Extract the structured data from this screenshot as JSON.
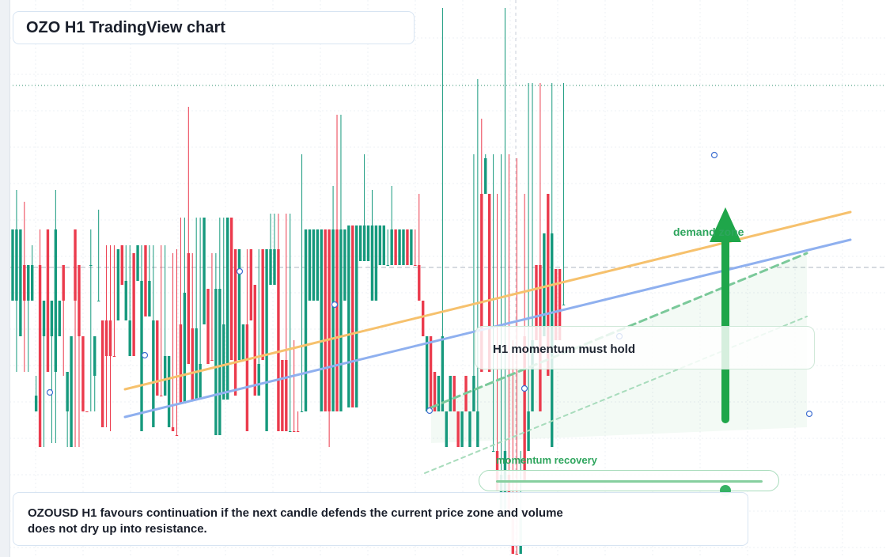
{
  "header": {
    "title": "OZO H1 TradingView chart"
  },
  "annotations": {
    "callout": "H1 momentum must hold",
    "demand_label": "demand zone",
    "momentum_label": "momentum recovery",
    "momentum_level": 0.86
  },
  "summary": {
    "line1": "OZOUSD H1 favours continuation if the next candle defends the current price zone and volume",
    "line2": "does not dry up into resistance."
  },
  "colors": {
    "bull": "#16997d",
    "bear": "#eb3b4d",
    "trend_upper": "#f6c16d",
    "trend_lower": "#8fb0ef",
    "accent": "#2ea55d"
  },
  "chart_data": {
    "type": "candlestick",
    "symbol": "OZOUSD",
    "timeframe": "H1",
    "ylim": [
      0,
      704
    ],
    "candles": [
      [
        290,
        290,
        380,
        380,
        1
      ],
      [
        290,
        240,
        470,
        380,
        1
      ],
      [
        290,
        290,
        425,
        425,
        1
      ],
      [
        335,
        255,
        470,
        380,
        0
      ],
      [
        335,
        335,
        470,
        380,
        1
      ],
      [
        335,
        310,
        380,
        380,
        1
      ],
      [
        500,
        475,
        520,
        520,
        1
      ],
      [
        335,
        290,
        565,
        565,
        0
      ],
      [
        380,
        380,
        565,
        425,
        1
      ],
      [
        290,
        290,
        470,
        470,
        0
      ],
      [
        380,
        380,
        560,
        425,
        1
      ],
      [
        290,
        240,
        560,
        470,
        1
      ],
      [
        380,
        380,
        425,
        425,
        1
      ],
      [
        335,
        335,
        475,
        380,
        0
      ],
      [
        470,
        470,
        565,
        520,
        1
      ],
      [
        425,
        425,
        565,
        565,
        1
      ],
      [
        290,
        290,
        565,
        380,
        0
      ],
      [
        335,
        335,
        565,
        425,
        0
      ],
      [
        425,
        425,
        520,
        520,
        0
      ],
      [
        520,
        520,
        520,
        520,
        0
      ],
      [
        335,
        290,
        520,
        335,
        1
      ],
      [
        425,
        425,
        520,
        475,
        1
      ],
      [
        380,
        265,
        380,
        380,
        1
      ],
      [
        405,
        405,
        540,
        540,
        0
      ],
      [
        405,
        310,
        540,
        450,
        0
      ],
      [
        405,
        310,
        545,
        450,
        0
      ],
      [
        450,
        310,
        450,
        450,
        0
      ],
      [
        315,
        315,
        405,
        405,
        1
      ],
      [
        310,
        310,
        360,
        360,
        0
      ],
      [
        355,
        310,
        405,
        405,
        1
      ],
      [
        405,
        310,
        450,
        450,
        1
      ],
      [
        320,
        320,
        450,
        450,
        0
      ],
      [
        310,
        310,
        355,
        355,
        1
      ],
      [
        355,
        310,
        545,
        545,
        1
      ],
      [
        310,
        310,
        400,
        400,
        0
      ],
      [
        355,
        310,
        400,
        400,
        1
      ],
      [
        405,
        310,
        540,
        540,
        1
      ],
      [
        405,
        405,
        500,
        500,
        0
      ],
      [
        500,
        310,
        500,
        500,
        0
      ],
      [
        450,
        310,
        500,
        500,
        1
      ],
      [
        450,
        450,
        540,
        540,
        1
      ],
      [
        540,
        320,
        545,
        545,
        0
      ],
      [
        550,
        315,
        550,
        550,
        0
      ],
      [
        410,
        275,
        510,
        510,
        0
      ],
      [
        370,
        275,
        510,
        510,
        1
      ],
      [
        320,
        135,
        460,
        460,
        0
      ],
      [
        415,
        320,
        505,
        505,
        0
      ],
      [
        415,
        275,
        505,
        505,
        1
      ],
      [
        460,
        275,
        505,
        505,
        1
      ],
      [
        275,
        275,
        410,
        410,
        1
      ],
      [
        365,
        365,
        460,
        460,
        0
      ],
      [
        455,
        320,
        455,
        455,
        0
      ],
      [
        365,
        320,
        550,
        550,
        1
      ],
      [
        365,
        275,
        550,
        550,
        1
      ],
      [
        410,
        275,
        505,
        505,
        1
      ],
      [
        275,
        275,
        505,
        505,
        1
      ],
      [
        275,
        275,
        455,
        455,
        0
      ],
      [
        315,
        315,
        500,
        500,
        0
      ],
      [
        315,
        315,
        455,
        455,
        1
      ],
      [
        410,
        410,
        455,
        455,
        1
      ],
      [
        410,
        315,
        545,
        545,
        0
      ],
      [
        315,
        315,
        405,
        405,
        0
      ],
      [
        360,
        360,
        500,
        500,
        0
      ],
      [
        460,
        315,
        500,
        500,
        1
      ],
      [
        315,
        315,
        455,
        455,
        0
      ],
      [
        315,
        315,
        545,
        545,
        1
      ],
      [
        315,
        270,
        360,
        360,
        1
      ],
      [
        315,
        270,
        360,
        360,
        1
      ],
      [
        315,
        270,
        545,
        545,
        0
      ],
      [
        455,
        455,
        545,
        545,
        0
      ],
      [
        455,
        270,
        545,
        545,
        0
      ],
      [
        545,
        270,
        545,
        545,
        1
      ],
      [
        545,
        430,
        545,
        545,
        0
      ],
      [
        545,
        520,
        545,
        545,
        0
      ],
      [
        520,
        195,
        520,
        520,
        1
      ],
      [
        290,
        290,
        520,
        520,
        1
      ],
      [
        290,
        290,
        380,
        380,
        1
      ],
      [
        290,
        290,
        380,
        380,
        1
      ],
      [
        290,
        290,
        380,
        380,
        1
      ],
      [
        290,
        290,
        520,
        520,
        1
      ],
      [
        290,
        290,
        520,
        520,
        0
      ],
      [
        290,
        290,
        565,
        520,
        0
      ],
      [
        290,
        235,
        520,
        520,
        1
      ],
      [
        290,
        145,
        520,
        520,
        0
      ],
      [
        290,
        145,
        520,
        520,
        1
      ],
      [
        290,
        290,
        380,
        380,
        1
      ],
      [
        285,
        285,
        515,
        515,
        1
      ],
      [
        285,
        285,
        515,
        515,
        0
      ],
      [
        285,
        285,
        515,
        515,
        1
      ],
      [
        285,
        285,
        330,
        330,
        1
      ],
      [
        285,
        195,
        330,
        330,
        1
      ],
      [
        285,
        285,
        330,
        330,
        1
      ],
      [
        285,
        240,
        380,
        380,
        1
      ],
      [
        285,
        285,
        380,
        380,
        1
      ],
      [
        285,
        285,
        335,
        335,
        1
      ],
      [
        285,
        285,
        335,
        335,
        1
      ],
      [
        335,
        290,
        335,
        335,
        1
      ],
      [
        290,
        235,
        335,
        335,
        1
      ],
      [
        290,
        290,
        335,
        335,
        0
      ],
      [
        290,
        290,
        335,
        335,
        1
      ],
      [
        290,
        290,
        335,
        335,
        1
      ],
      [
        290,
        290,
        335,
        335,
        0
      ],
      [
        290,
        290,
        335,
        335,
        1
      ],
      [
        335,
        290,
        335,
        335,
        0
      ],
      [
        335,
        245,
        380,
        380,
        0
      ],
      [
        380,
        380,
        425,
        425,
        0
      ],
      [
        425,
        425,
        520,
        520,
        1
      ],
      [
        425,
        425,
        520,
        520,
        0
      ],
      [
        470,
        470,
        520,
        520,
        0
      ],
      [
        475,
        475,
        520,
        520,
        1
      ],
      [
        425,
        10,
        520,
        520,
        1
      ],
      [
        520,
        520,
        565,
        565,
        1
      ],
      [
        475,
        475,
        520,
        520,
        1
      ],
      [
        475,
        475,
        520,
        520,
        0
      ],
      [
        520,
        520,
        565,
        565,
        0
      ],
      [
        520,
        520,
        565,
        565,
        1
      ],
      [
        475,
        475,
        520,
        520,
        0
      ],
      [
        520,
        520,
        565,
        565,
        1
      ],
      [
        475,
        195,
        520,
        520,
        1
      ],
      [
        520,
        100,
        565,
        565,
        1
      ],
      [
        245,
        150,
        470,
        470,
        0
      ],
      [
        200,
        195,
        245,
        245,
        1
      ],
      [
        245,
        245,
        470,
        470,
        0
      ],
      [
        570,
        195,
        570,
        570,
        1
      ],
      [
        570,
        245,
        620,
        620,
        0
      ],
      [
        600,
        195,
        650,
        650,
        1
      ],
      [
        570,
        10,
        650,
        650,
        1
      ],
      [
        600,
        195,
        650,
        650,
        0
      ],
      [
        655,
        430,
        700,
        700,
        0
      ],
      [
        700,
        200,
        700,
        700,
        0
      ],
      [
        655,
        570,
        700,
        700,
        1
      ],
      [
        425,
        245,
        610,
        610,
        0
      ],
      [
        520,
        105,
        570,
        570,
        1
      ],
      [
        430,
        105,
        520,
        520,
        1
      ],
      [
        335,
        335,
        430,
        430,
        0
      ],
      [
        335,
        105,
        520,
        520,
        0
      ],
      [
        295,
        295,
        425,
        425,
        1
      ],
      [
        245,
        245,
        475,
        475,
        0
      ],
      [
        295,
        105,
        565,
        565,
        1
      ],
      [
        340,
        340,
        430,
        430,
        0
      ],
      [
        340,
        340,
        430,
        430,
        0
      ],
      [
        385,
        105,
        385,
        385,
        1
      ]
    ],
    "markers": [
      [
        63,
        496
      ],
      [
        183,
        449
      ],
      [
        303,
        343
      ],
      [
        423,
        385
      ],
      [
        543,
        519
      ],
      [
        663,
        491
      ],
      [
        783,
        425
      ],
      [
        903,
        196
      ],
      [
        1023,
        523
      ]
    ],
    "guides": {
      "price_level": 338,
      "resistance": 108
    },
    "trendlines": [
      {
        "name": "upper",
        "from": [
          158,
          492
        ],
        "to": [
          1075,
          268
        ]
      },
      {
        "name": "lower",
        "from": [
          158,
          527
        ],
        "to": [
          1075,
          303
        ]
      },
      {
        "name": "dashed",
        "from": [
          545,
          515
        ],
        "to": [
          1020,
          320
        ]
      },
      {
        "name": "dotted",
        "from": [
          537,
          598
        ],
        "to": [
          1020,
          400
        ]
      }
    ],
    "arrow": {
      "x": 917,
      "from": 530,
      "to": 262
    }
  }
}
